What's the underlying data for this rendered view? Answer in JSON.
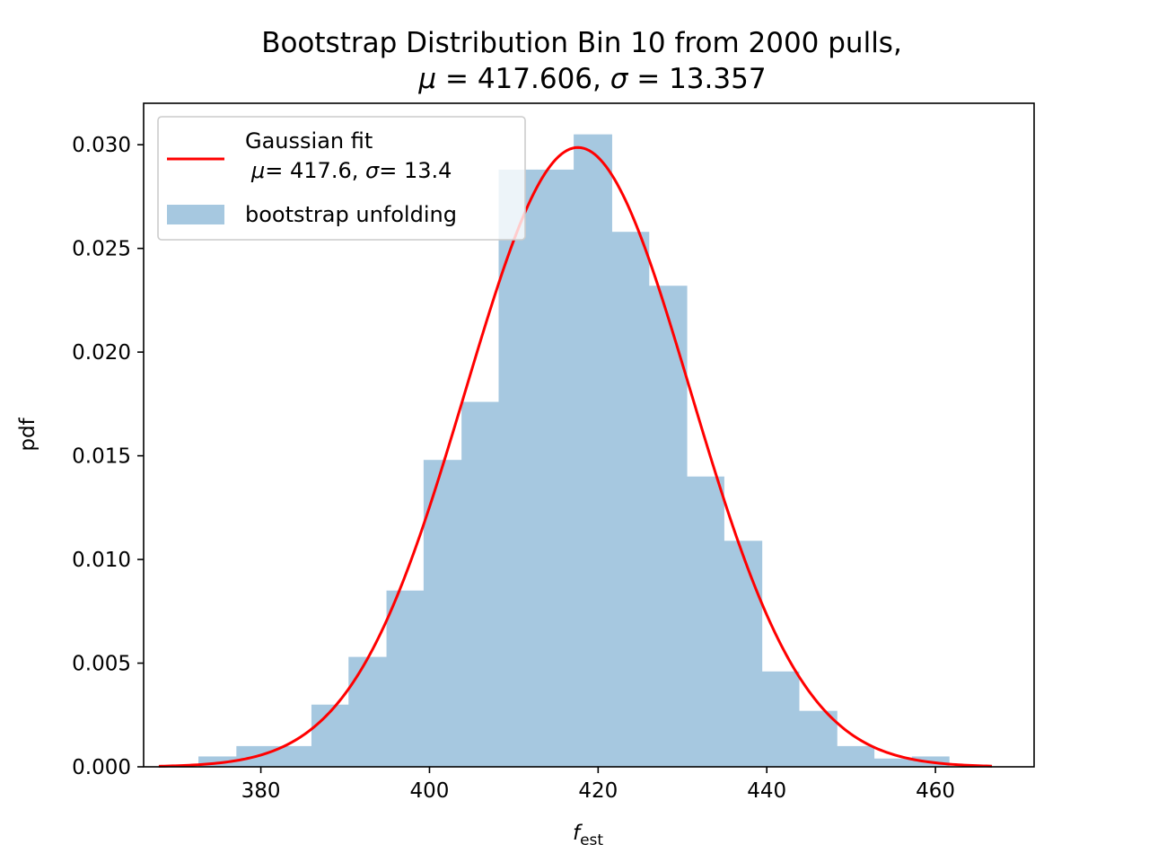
{
  "chart_data": {
    "type": "bar",
    "title_line1": "Bootstrap Distribution  Bin 10 from 2000 pulls,",
    "title_line2_prefix": "μ",
    "title_line2_mid": " = 417.606, ",
    "title_line2_sigma": "σ",
    "title_line2_suffix": " = 13.357",
    "xlabel_main": "f",
    "xlabel_sub": "est",
    "ylabel": "pdf",
    "xlim": [
      366.1,
      471.7
    ],
    "ylim": [
      0,
      0.032
    ],
    "xticks": [
      380,
      400,
      420,
      440,
      460
    ],
    "xtick_labels": [
      "380",
      "400",
      "420",
      "440",
      "460"
    ],
    "yticks": [
      0,
      0.005,
      0.01,
      0.015,
      0.02,
      0.025,
      0.03
    ],
    "ytick_labels": [
      "0.000",
      "0.005",
      "0.010",
      "0.015",
      "0.020",
      "0.025",
      "0.030"
    ],
    "histogram": {
      "name": "bootstrap unfolding",
      "color": "#a6c8e0",
      "bin_edges": [
        372.6,
        377.1,
        381.5,
        386.0,
        390.4,
        394.9,
        399.3,
        403.8,
        408.2,
        412.7,
        417.1,
        421.6,
        426.0,
        430.5,
        434.9,
        439.4,
        443.8,
        448.3,
        452.7,
        457.2,
        461.6
      ],
      "values": [
        0.0005,
        0.001,
        0.001,
        0.003,
        0.0053,
        0.0085,
        0.0148,
        0.0176,
        0.0288,
        0.0288,
        0.0305,
        0.0258,
        0.0232,
        0.014,
        0.0109,
        0.0046,
        0.0027,
        0.001,
        0.0004,
        0.0005
      ]
    },
    "fit": {
      "name_line1": "Gaussian fit",
      "name_line2_mu": "μ",
      "name_line2_mid": "= 417.6, ",
      "name_line2_sigma": "σ",
      "name_line2_suffix": "= 13.4",
      "mu": 417.606,
      "sigma": 13.357,
      "x_range": [
        367.9,
        466.7
      ],
      "color": "#ff0000"
    },
    "legend_position": "upper-left",
    "grid": false
  }
}
